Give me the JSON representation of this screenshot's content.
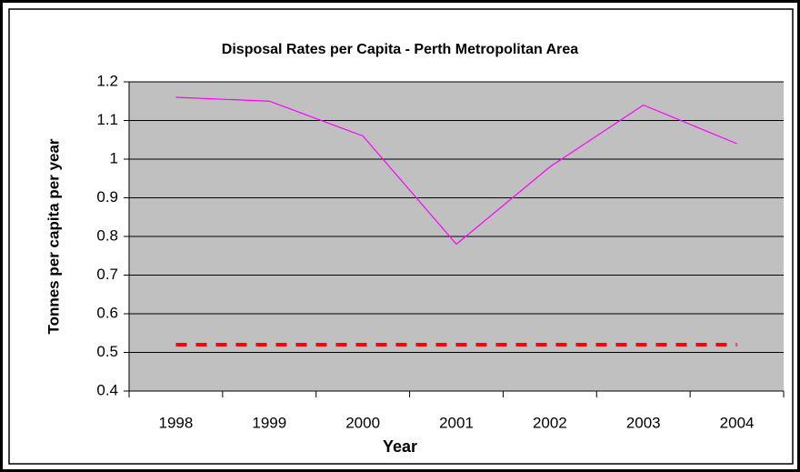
{
  "chart_data": {
    "type": "line",
    "title": "Disposal Rates per Capita - Perth Metropolitan Area",
    "x_label": "Year",
    "y_label": "Tonnes per capita per year",
    "categories": [
      "1998",
      "1999",
      "2000",
      "2001",
      "2002",
      "2003",
      "2004"
    ],
    "series": [
      {
        "color": "#ff00ff",
        "values": [
          1.16,
          1.15,
          1.06,
          0.78,
          0.98,
          1.14,
          1.04
        ]
      },
      {
        "color": "#ff0000",
        "dashed": true,
        "values": [
          0.52,
          0.52,
          0.52,
          0.52,
          0.52,
          0.52,
          0.52
        ]
      }
    ],
    "ylim": [
      0.4,
      1.2
    ],
    "yticks": [
      0.4,
      0.5,
      0.6,
      0.7,
      0.8,
      0.9,
      1,
      1.1,
      1.2
    ],
    "grid": true,
    "plot_background": "#c0c0c0"
  }
}
